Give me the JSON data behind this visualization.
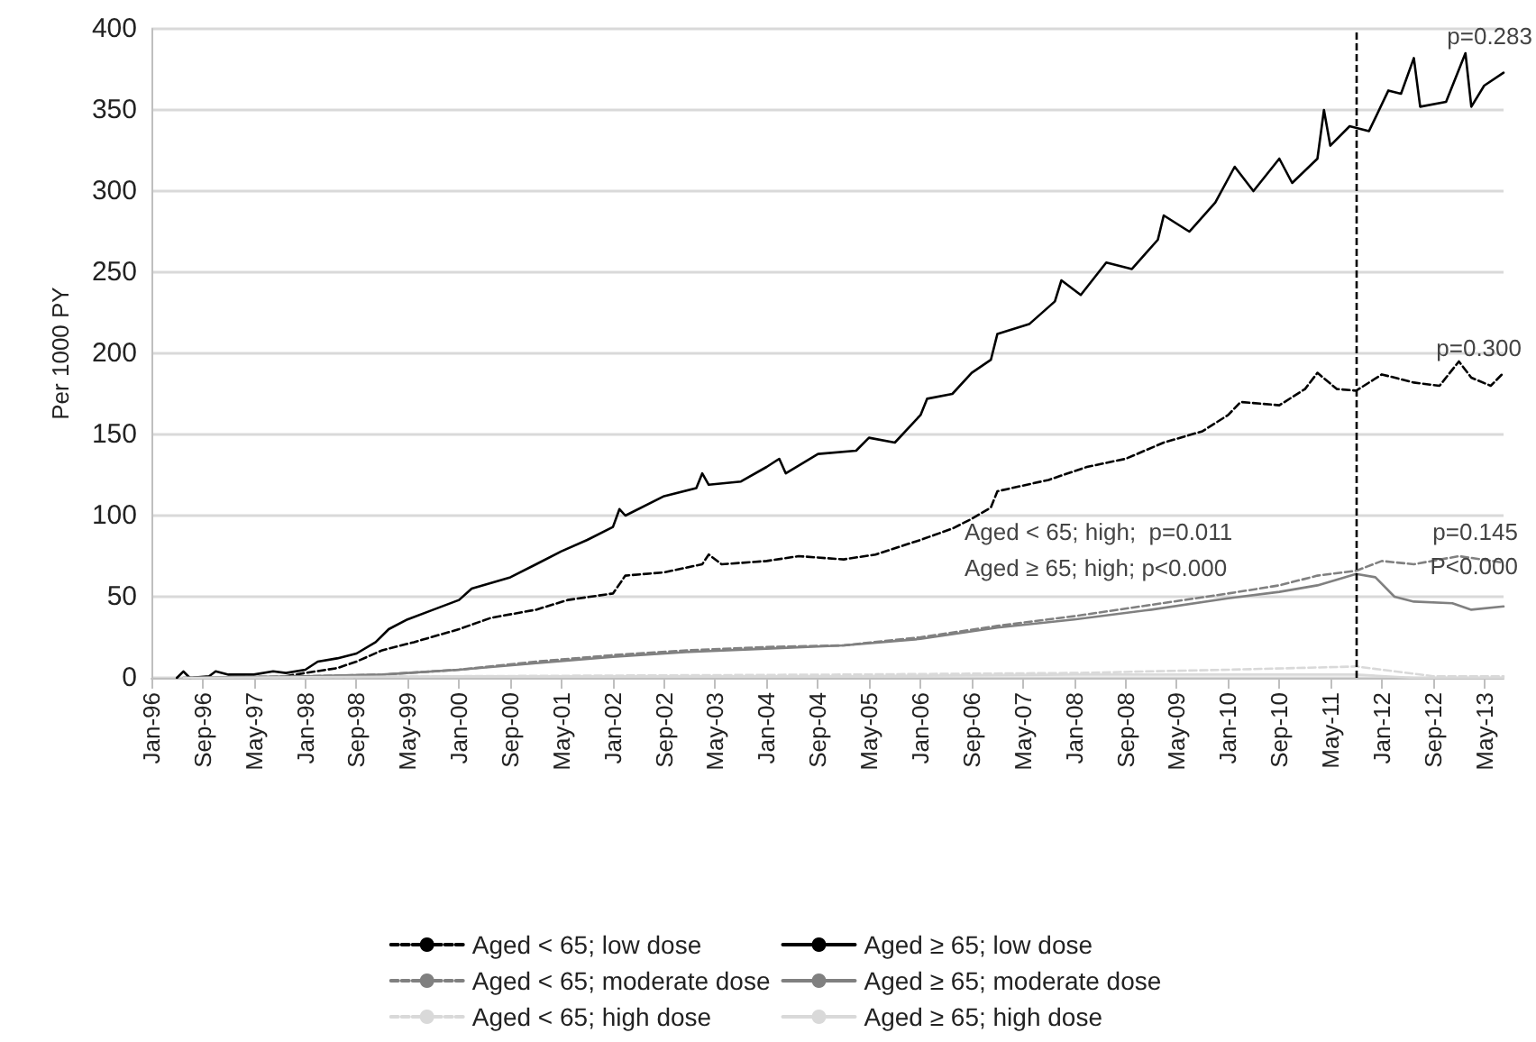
{
  "chart_data": {
    "type": "line",
    "ylabel": "Per 1000 PY",
    "xlim": [
      "1996-01",
      "2013-08"
    ],
    "ylim": [
      0,
      400
    ],
    "yticks": [
      0,
      50,
      100,
      150,
      200,
      250,
      300,
      350,
      400
    ],
    "xticks": [
      {
        "value": "1996-01",
        "label": "Jan-96"
      },
      {
        "value": "1996-09",
        "label": "Sep-96"
      },
      {
        "value": "1997-05",
        "label": "May-97"
      },
      {
        "value": "1998-01",
        "label": "Jan-98"
      },
      {
        "value": "1998-09",
        "label": "Sep-98"
      },
      {
        "value": "1999-05",
        "label": "May-99"
      },
      {
        "value": "2000-01",
        "label": "Jan-00"
      },
      {
        "value": "2000-09",
        "label": "Sep-00"
      },
      {
        "value": "2001-05",
        "label": "May-01"
      },
      {
        "value": "2002-01",
        "label": "Jan-02"
      },
      {
        "value": "2002-09",
        "label": "Sep-02"
      },
      {
        "value": "2003-05",
        "label": "May-03"
      },
      {
        "value": "2004-01",
        "label": "Jan-04"
      },
      {
        "value": "2004-09",
        "label": "Sep-04"
      },
      {
        "value": "2005-05",
        "label": "May-05"
      },
      {
        "value": "2006-01",
        "label": "Jan-06"
      },
      {
        "value": "2006-09",
        "label": "Sep-06"
      },
      {
        "value": "2007-05",
        "label": "May-07"
      },
      {
        "value": "2008-01",
        "label": "Jan-08"
      },
      {
        "value": "2008-09",
        "label": "Sep-08"
      },
      {
        "value": "2009-05",
        "label": "May-09"
      },
      {
        "value": "2010-01",
        "label": "Jan-10"
      },
      {
        "value": "2010-09",
        "label": "Sep-10"
      },
      {
        "value": "2011-05",
        "label": "May-11"
      },
      {
        "value": "2012-01",
        "label": "Jan-12"
      },
      {
        "value": "2012-09",
        "label": "Sep-12"
      },
      {
        "value": "2013-05",
        "label": "May-13"
      }
    ],
    "grid": "y",
    "legend": "bottom",
    "marker": "none",
    "series": [
      {
        "name": "Aged < 65; low dose",
        "color": "#000000",
        "line_style": "dashed",
        "x": [
          "1997-10",
          "1998-01",
          "1998-06",
          "1998-09",
          "1999-01",
          "1999-06",
          "2000-01",
          "2000-06",
          "2001-01",
          "2001-06",
          "2002-01",
          "2002-03",
          "2002-09",
          "2003-03",
          "2003-04",
          "2003-06",
          "2004-01",
          "2004-06",
          "2005-01",
          "2005-06",
          "2006-01",
          "2006-06",
          "2006-09",
          "2006-12",
          "2007-01",
          "2007-09",
          "2008-03",
          "2008-09",
          "2009-03",
          "2009-09",
          "2010-01",
          "2010-03",
          "2010-09",
          "2011-01",
          "2011-03",
          "2011-06",
          "2011-09",
          "2012-01",
          "2012-06",
          "2012-10",
          "2013-01",
          "2013-03",
          "2013-06",
          "2013-08"
        ],
        "values": [
          1,
          3,
          6,
          10,
          17,
          22,
          30,
          37,
          42,
          48,
          52,
          63,
          65,
          70,
          76,
          70,
          72,
          75,
          73,
          76,
          85,
          92,
          98,
          105,
          115,
          122,
          130,
          135,
          145,
          152,
          162,
          170,
          168,
          178,
          188,
          178,
          177,
          187,
          182,
          180,
          195,
          185,
          180,
          188
        ]
      },
      {
        "name": "Aged < 65; moderate dose",
        "color": "#808080",
        "line_style": "dashed",
        "x": [
          "1996-06",
          "1998-01",
          "1999-01",
          "2000-01",
          "2001-01",
          "2002-01",
          "2003-01",
          "2004-01",
          "2005-01",
          "2006-01",
          "2007-01",
          "2008-01",
          "2009-01",
          "2010-01",
          "2010-09",
          "2011-03",
          "2011-09",
          "2012-01",
          "2012-06",
          "2013-01",
          "2013-08"
        ],
        "values": [
          0,
          1,
          2,
          5,
          10,
          14,
          17,
          19,
          20,
          25,
          32,
          38,
          45,
          52,
          57,
          63,
          66,
          72,
          70,
          75,
          71
        ]
      },
      {
        "name": "Aged < 65; high dose",
        "color": "#d9d9d9",
        "line_style": "dashed",
        "x": [
          "1996-06",
          "2000-01",
          "2005-01",
          "2008-01",
          "2010-01",
          "2011-09",
          "2012-03",
          "2012-09",
          "2013-08"
        ],
        "values": [
          0,
          1,
          2,
          3,
          5,
          7,
          4,
          1,
          1
        ]
      },
      {
        "name": "Aged ≥ 65; low dose",
        "color": "#000000",
        "line_style": "solid",
        "x": [
          "1996-05",
          "1996-06",
          "1996-07",
          "1996-10",
          "1996-11",
          "1997-01",
          "1997-05",
          "1997-08",
          "1997-10",
          "1998-01",
          "1998-03",
          "1998-06",
          "1998-09",
          "1998-12",
          "1999-02",
          "1999-05",
          "1999-09",
          "2000-01",
          "2000-03",
          "2000-09",
          "2001-01",
          "2001-05",
          "2001-09",
          "2002-01",
          "2002-02",
          "2002-03",
          "2002-09",
          "2003-02",
          "2003-03",
          "2003-04",
          "2003-09",
          "2004-01",
          "2004-03",
          "2004-04",
          "2004-09",
          "2005-03",
          "2005-05",
          "2005-09",
          "2006-01",
          "2006-02",
          "2006-06",
          "2006-09",
          "2006-12",
          "2007-01",
          "2007-06",
          "2007-10",
          "2007-11",
          "2008-02",
          "2008-06",
          "2008-10",
          "2009-02",
          "2009-03",
          "2009-07",
          "2009-11",
          "2010-02",
          "2010-05",
          "2010-09",
          "2010-11",
          "2011-03",
          "2011-04",
          "2011-05",
          "2011-08",
          "2011-11",
          "2012-02",
          "2012-04",
          "2012-06",
          "2012-07",
          "2012-11",
          "2013-02",
          "2013-03",
          "2013-05",
          "2013-08"
        ],
        "values": [
          0,
          4,
          0,
          1,
          4,
          2,
          2,
          4,
          3,
          5,
          10,
          12,
          15,
          22,
          30,
          36,
          42,
          48,
          55,
          62,
          70,
          78,
          85,
          93,
          104,
          100,
          112,
          117,
          126,
          119,
          121,
          130,
          135,
          126,
          138,
          140,
          148,
          145,
          162,
          172,
          175,
          188,
          196,
          212,
          218,
          232,
          245,
          236,
          256,
          252,
          270,
          285,
          275,
          293,
          315,
          300,
          320,
          305,
          320,
          350,
          328,
          340,
          337,
          362,
          360,
          382,
          352,
          355,
          385,
          352,
          365,
          373
        ]
      },
      {
        "name": "Aged ≥ 65; moderate dose",
        "color": "#808080",
        "line_style": "solid",
        "x": [
          "1996-06",
          "1998-01",
          "1999-01",
          "2000-01",
          "2001-01",
          "2002-01",
          "2003-01",
          "2004-01",
          "2005-01",
          "2006-01",
          "2007-01",
          "2008-01",
          "2009-01",
          "2010-01",
          "2010-09",
          "2011-03",
          "2011-09",
          "2011-12",
          "2012-03",
          "2012-06",
          "2012-12",
          "2013-03",
          "2013-08"
        ],
        "values": [
          0,
          1,
          2,
          5,
          9,
          13,
          16,
          18,
          20,
          24,
          31,
          36,
          42,
          49,
          53,
          57,
          64,
          62,
          50,
          47,
          46,
          42,
          44
        ]
      },
      {
        "name": "Aged ≥ 65; high dose",
        "color": "#d9d9d9",
        "line_style": "solid",
        "x": [
          "1996-06",
          "2000-01",
          "2005-01",
          "2008-01",
          "2010-01",
          "2011-09",
          "2012-06",
          "2013-08"
        ],
        "values": [
          0,
          1,
          1,
          2,
          2,
          2,
          0,
          0
        ]
      }
    ],
    "ref_lines": [
      {
        "axis": "x",
        "value": "2011-09",
        "color": "#000000",
        "line_style": "dashed"
      }
    ],
    "annotations": [
      "p=0.283",
      "p=0.300",
      "p=0.145",
      "P<0.000",
      "Aged < 65; high;  p=0.011",
      "Aged ≥ 65; high; p<0.000"
    ]
  }
}
